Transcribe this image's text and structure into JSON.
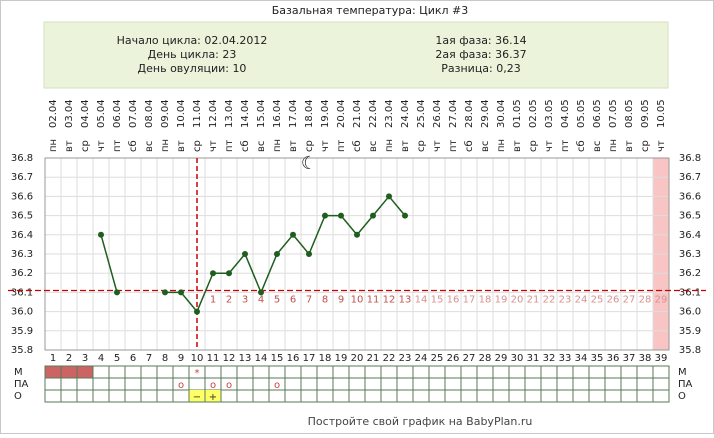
{
  "chart_data": {
    "type": "line",
    "title": "Базальная температура: Цикл #3",
    "info_left": [
      "Начало цикла: 02.04.2012",
      "День цикла: 23",
      "День овуляции: 10"
    ],
    "info_right": [
      "1ая фаза: 36.14",
      "2ая фаза: 36.37",
      "Разница: 0,23"
    ],
    "weekdays": [
      "пн",
      "вт",
      "ср",
      "чт",
      "пт",
      "сб",
      "вс",
      "пн",
      "вт",
      "ср",
      "чт",
      "пт",
      "сб",
      "вс",
      "пн",
      "вт",
      "ср",
      "чт",
      "пт",
      "сб",
      "вс",
      "пн",
      "вт",
      "ср",
      "чт",
      "пт",
      "сб",
      "вс",
      "пн",
      "вт",
      "ср",
      "чт",
      "пт",
      "сб",
      "вс",
      "пн",
      "вт",
      "ср",
      "чт"
    ],
    "dates": [
      "02.04",
      "03.04",
      "04.04",
      "05.04",
      "06.04",
      "07.04",
      "08.04",
      "09.04",
      "10.04",
      "11.04",
      "12.04",
      "13.04",
      "14.04",
      "15.04",
      "16.04",
      "17.04",
      "18.04",
      "19.04",
      "20.04",
      "21.04",
      "22.04",
      "23.04",
      "24.04",
      "25.04",
      "26.04",
      "27.04",
      "28.04",
      "29.04",
      "30.04",
      "01.05",
      "02.05",
      "03.05",
      "04.05",
      "05.05",
      "06.05",
      "07.05",
      "08.05",
      "09.05",
      "10.05"
    ],
    "x": [
      1,
      2,
      3,
      4,
      5,
      6,
      7,
      8,
      9,
      10,
      11,
      12,
      13,
      14,
      15,
      16,
      17,
      18,
      19,
      20,
      21,
      22,
      23,
      24,
      25,
      26,
      27,
      28,
      29,
      30,
      31,
      32,
      33,
      34,
      35,
      36,
      37,
      38,
      39
    ],
    "xlim": [
      0.5,
      39.5
    ],
    "series": [
      {
        "color": "#1e5e1e",
        "values": [
          null,
          null,
          null,
          36.4,
          36.1,
          null,
          null,
          36.1,
          36.1,
          36.0,
          36.2,
          36.2,
          36.3,
          36.1,
          36.3,
          36.4,
          36.3,
          36.5,
          36.5,
          36.4,
          36.5,
          36.6,
          36.5,
          null,
          null,
          null,
          null,
          null,
          null,
          null,
          null,
          null,
          null,
          null,
          null,
          null,
          null,
          null,
          null
        ]
      }
    ],
    "ylim": [
      35.8,
      36.8
    ],
    "yticks": [
      36.8,
      36.7,
      36.6,
      36.5,
      36.4,
      36.3,
      36.2,
      36.1,
      {
        "value": 36.0,
        "label": "36.0"
      },
      35.9,
      35.8
    ],
    "grid": true,
    "coverline": 36.11,
    "ovulation_day": 10,
    "current_day": 23,
    "highlight_day": 39,
    "annotation": {
      "text": "☾",
      "day": 17,
      "value": 36.77
    },
    "phase_labels": {
      "start_day": 11,
      "labels": [
        1,
        2,
        3,
        4,
        5,
        6,
        7,
        8,
        9,
        10,
        11,
        12,
        13,
        14,
        15,
        16,
        17,
        18,
        19,
        20,
        21,
        22,
        23,
        24,
        25,
        26,
        27,
        28,
        29
      ]
    },
    "rows": [
      {
        "label": "М",
        "fill_days": [
          1,
          2,
          3
        ],
        "fill_color": "#cd6464",
        "symbols": [
          {
            "day": 10,
            "text": "*"
          }
        ]
      },
      {
        "label": "ПА",
        "fill_days": [],
        "fill_color": "#ffffff",
        "symbols": [
          {
            "day": 9,
            "text": "о"
          },
          {
            "day": 11,
            "text": "о"
          },
          {
            "day": 12,
            "text": "о"
          },
          {
            "day": 15,
            "text": "о"
          }
        ]
      },
      {
        "label": "О",
        "fill_days": [
          10,
          11
        ],
        "fill_color": "#ffff66",
        "symbols": [
          {
            "day": 10,
            "text": "−"
          },
          {
            "day": 11,
            "text": "+"
          }
        ]
      }
    ],
    "footer": "Постройте свой график на BabyPlan.ru"
  }
}
